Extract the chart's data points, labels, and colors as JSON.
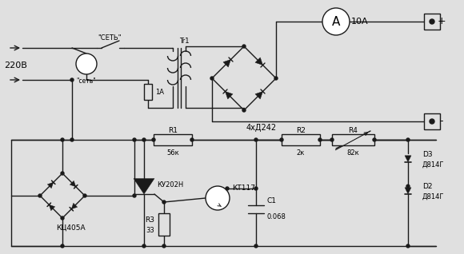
{
  "bg_color": "#e0e0e0",
  "line_color": "#1a1a1a",
  "line_width": 1.0,
  "fig_width": 5.8,
  "fig_height": 3.18,
  "labels": {
    "v220": "220В",
    "set_label": "\"СЕТЬ\"",
    "sete_label": "\"сеть\"",
    "tr1": "Tr1",
    "fuse": "1А",
    "bridge_label": "4xД242",
    "ammeter_label": "10А",
    "kc405a": "КЦ405А",
    "ku202n": "КУ202Н",
    "kt117": "КТ117",
    "r1_label": "R1",
    "r1_val": "56к",
    "r2_label": "R2",
    "r2_val": "2к",
    "r3_label": "R3",
    "r3_val": "33",
    "r4_label": "R4",
    "r4_val": "82к",
    "c1_label": "C1",
    "c1_val": "0.068",
    "d2_label": "D2",
    "d2_val": "Д814Г",
    "d3_label": "D3",
    "d3_val": "Д814Г",
    "plus": "+",
    "minus": "-"
  }
}
